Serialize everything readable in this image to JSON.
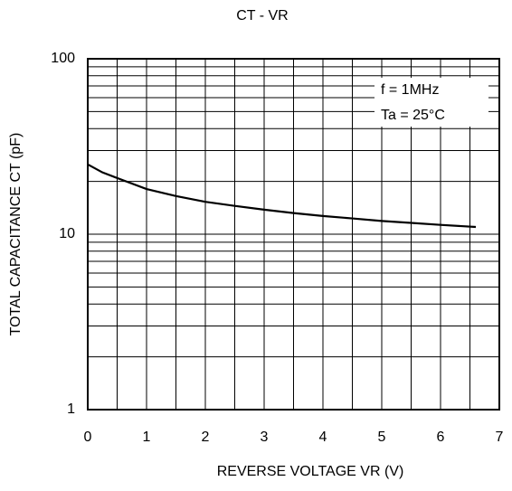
{
  "chart_data": {
    "type": "line",
    "title": "CT - VR",
    "x_label": "REVERSE VOLTAGE  VR (V)",
    "y_label": "TOTAL CAPACITANCE  CT (pF)",
    "annotations": [
      "f = 1MHz",
      "Ta = 25°C"
    ],
    "x": [
      0,
      0.25,
      0.5,
      1,
      1.5,
      2,
      2.5,
      3,
      3.5,
      4,
      4.5,
      5,
      5.5,
      6,
      6.6
    ],
    "series": [
      {
        "name": "CT",
        "color": "#000000",
        "values": [
          25,
          22.5,
          20.9,
          18.1,
          16.5,
          15.3,
          14.5,
          13.8,
          13.2,
          12.7,
          12.3,
          11.9,
          11.6,
          11.3,
          11.0
        ]
      }
    ],
    "xlim": [
      0,
      7
    ],
    "xticks": [
      0,
      1,
      2,
      3,
      4,
      5,
      6,
      7
    ],
    "ylim": [
      1,
      100
    ],
    "yticks": [
      1,
      10,
      100
    ],
    "ylog": true,
    "grid": true,
    "x_minor_gridlines": [
      0.5,
      1.5,
      2.5,
      3.5,
      4.5,
      5.5,
      6.5
    ],
    "y_minor_gridlines": [
      2,
      3,
      4,
      5,
      6,
      7,
      8,
      9,
      20,
      30,
      40,
      50,
      60,
      70,
      80,
      90
    ]
  }
}
